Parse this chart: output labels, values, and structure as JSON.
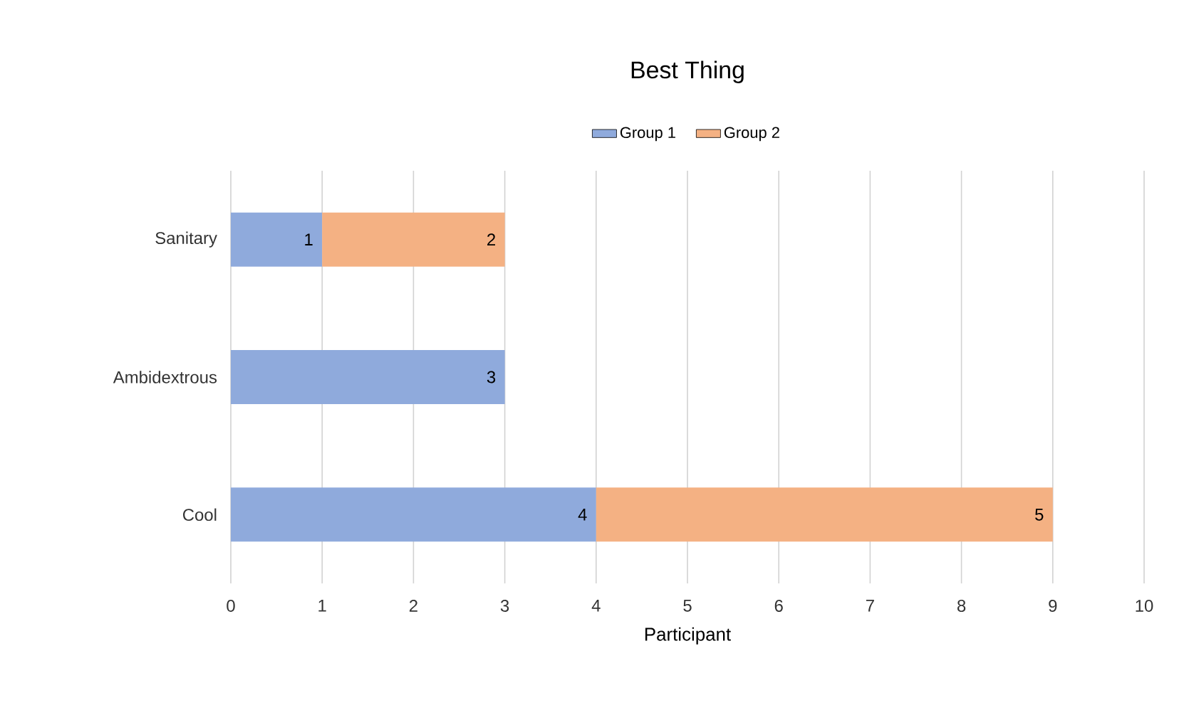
{
  "chart_data": {
    "type": "bar",
    "orientation": "horizontal",
    "stacked": true,
    "title": "Best Thing",
    "xlabel": "Participant",
    "categories": [
      "Sanitary",
      "Ambidextrous",
      "Cool"
    ],
    "series": [
      {
        "name": "Group 1",
        "color": "#8faadc",
        "values": [
          1,
          3,
          4
        ]
      },
      {
        "name": "Group 2",
        "color": "#f4b183",
        "values": [
          2,
          null,
          5
        ]
      }
    ],
    "xlim": [
      0,
      10
    ],
    "xticks": [
      0,
      1,
      2,
      3,
      4,
      5,
      6,
      7,
      8,
      9,
      10
    ],
    "grid": "x",
    "legend": "top",
    "data_labels": true
  }
}
